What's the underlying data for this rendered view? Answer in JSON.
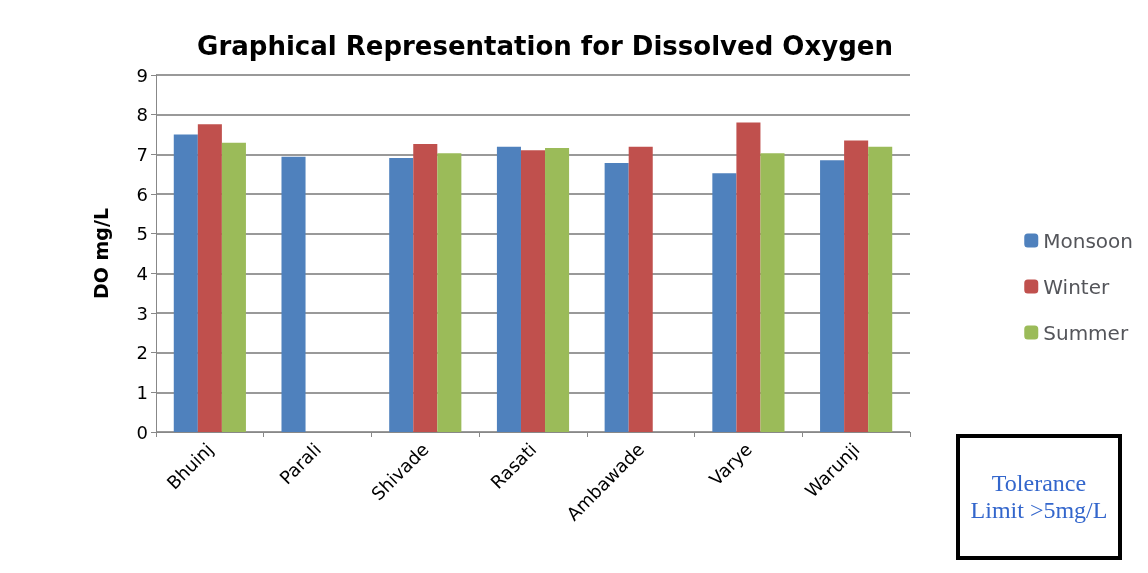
{
  "chart_data": {
    "type": "bar",
    "title": "Graphical Representation for Dissolved Oxygen",
    "ylabel": "DO mg/L",
    "categories": [
      "Bhuinj",
      "Parali",
      "Shivade",
      "Rasati",
      "Ambawade",
      "Varye",
      "Warunji"
    ],
    "series": [
      {
        "name": "Monsoon",
        "color": "#4f81bd",
        "values": [
          7.5,
          6.94,
          6.91,
          7.19,
          6.78,
          6.52,
          6.85
        ]
      },
      {
        "name": "Winter",
        "color": "#c0504d",
        "values": [
          7.76,
          null,
          7.26,
          7.1,
          7.19,
          7.8,
          7.35
        ]
      },
      {
        "name": "Summer",
        "color": "#9bbb59",
        "values": [
          7.29,
          null,
          7.03,
          7.16,
          null,
          7.03,
          7.19
        ]
      }
    ],
    "ylim": [
      0,
      9
    ],
    "yticks": [
      0,
      1,
      2,
      3,
      4,
      5,
      6,
      7,
      8,
      9
    ],
    "grid": "y",
    "legend": "right",
    "annotations": [
      "Tolerance Limit >5mg/L"
    ]
  }
}
